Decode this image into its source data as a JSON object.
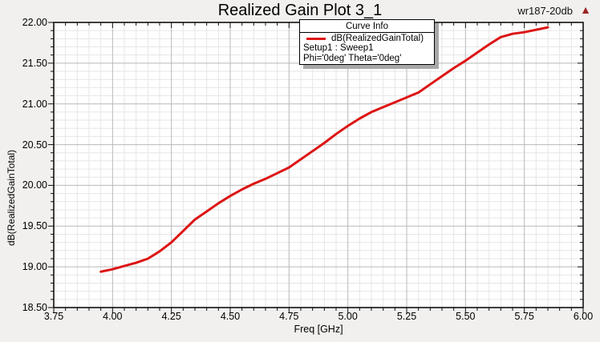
{
  "title": "Realized Gain Plot 3_1",
  "watermark": {
    "text": "wr187-20db"
  },
  "logo": {
    "glyph": "▲",
    "color": "#9b2424",
    "name": "ansoft-logo"
  },
  "legend": {
    "header": "Curve Info",
    "series_label": "dB(RealizedGainTotal)",
    "line1": "Setup1 : Sweep1",
    "line2": "Phi='0deg' Theta='0deg'",
    "swatch_color": "#dd1414"
  },
  "colors": {
    "curve": "#dd1414",
    "grid_major": "#b9b9b9",
    "grid_minor": "#e6e6e6",
    "axis": "#111111",
    "plot_bg": "#ffffff",
    "page_bg": "#f1f0ee"
  },
  "chart_data": {
    "type": "line",
    "title": "Realized Gain Plot 3_1",
    "xlabel": "Freq [GHz]",
    "ylabel": "dB(RealizedGainTotal)",
    "xlim": [
      3.75,
      6.0
    ],
    "ylim": [
      18.5,
      22.0
    ],
    "x_major_step": 0.25,
    "y_major_step": 0.5,
    "x_minor_per_major": 5,
    "y_minor_per_major": 5,
    "grid": true,
    "legend_position": "top-center",
    "x_tick_labels": [
      "3.75",
      "4.00",
      "4.25",
      "4.50",
      "4.75",
      "5.00",
      "5.25",
      "5.50",
      "5.75",
      "6.00"
    ],
    "y_tick_labels": [
      "22.00",
      "21.50",
      "21.00",
      "20.50",
      "20.00",
      "19.50",
      "19.00",
      "18.50"
    ],
    "series": [
      {
        "name": "dB(RealizedGainTotal)",
        "color": "#dd1414",
        "x": [
          3.95,
          4.0,
          4.05,
          4.1,
          4.15,
          4.2,
          4.25,
          4.3,
          4.35,
          4.4,
          4.45,
          4.5,
          4.55,
          4.6,
          4.65,
          4.7,
          4.75,
          4.8,
          4.85,
          4.9,
          4.95,
          5.0,
          5.05,
          5.1,
          5.15,
          5.2,
          5.25,
          5.3,
          5.35,
          5.4,
          5.45,
          5.5,
          5.55,
          5.6,
          5.65,
          5.7,
          5.75,
          5.8,
          5.85
        ],
        "y": [
          18.94,
          18.97,
          19.01,
          19.05,
          19.1,
          19.19,
          19.3,
          19.44,
          19.58,
          19.68,
          19.78,
          19.87,
          19.95,
          20.02,
          20.08,
          20.15,
          20.22,
          20.32,
          20.42,
          20.52,
          20.63,
          20.73,
          20.82,
          20.9,
          20.96,
          21.02,
          21.08,
          21.14,
          21.24,
          21.34,
          21.44,
          21.53,
          21.63,
          21.73,
          21.82,
          21.86,
          21.88,
          21.91,
          21.94
        ]
      }
    ]
  }
}
